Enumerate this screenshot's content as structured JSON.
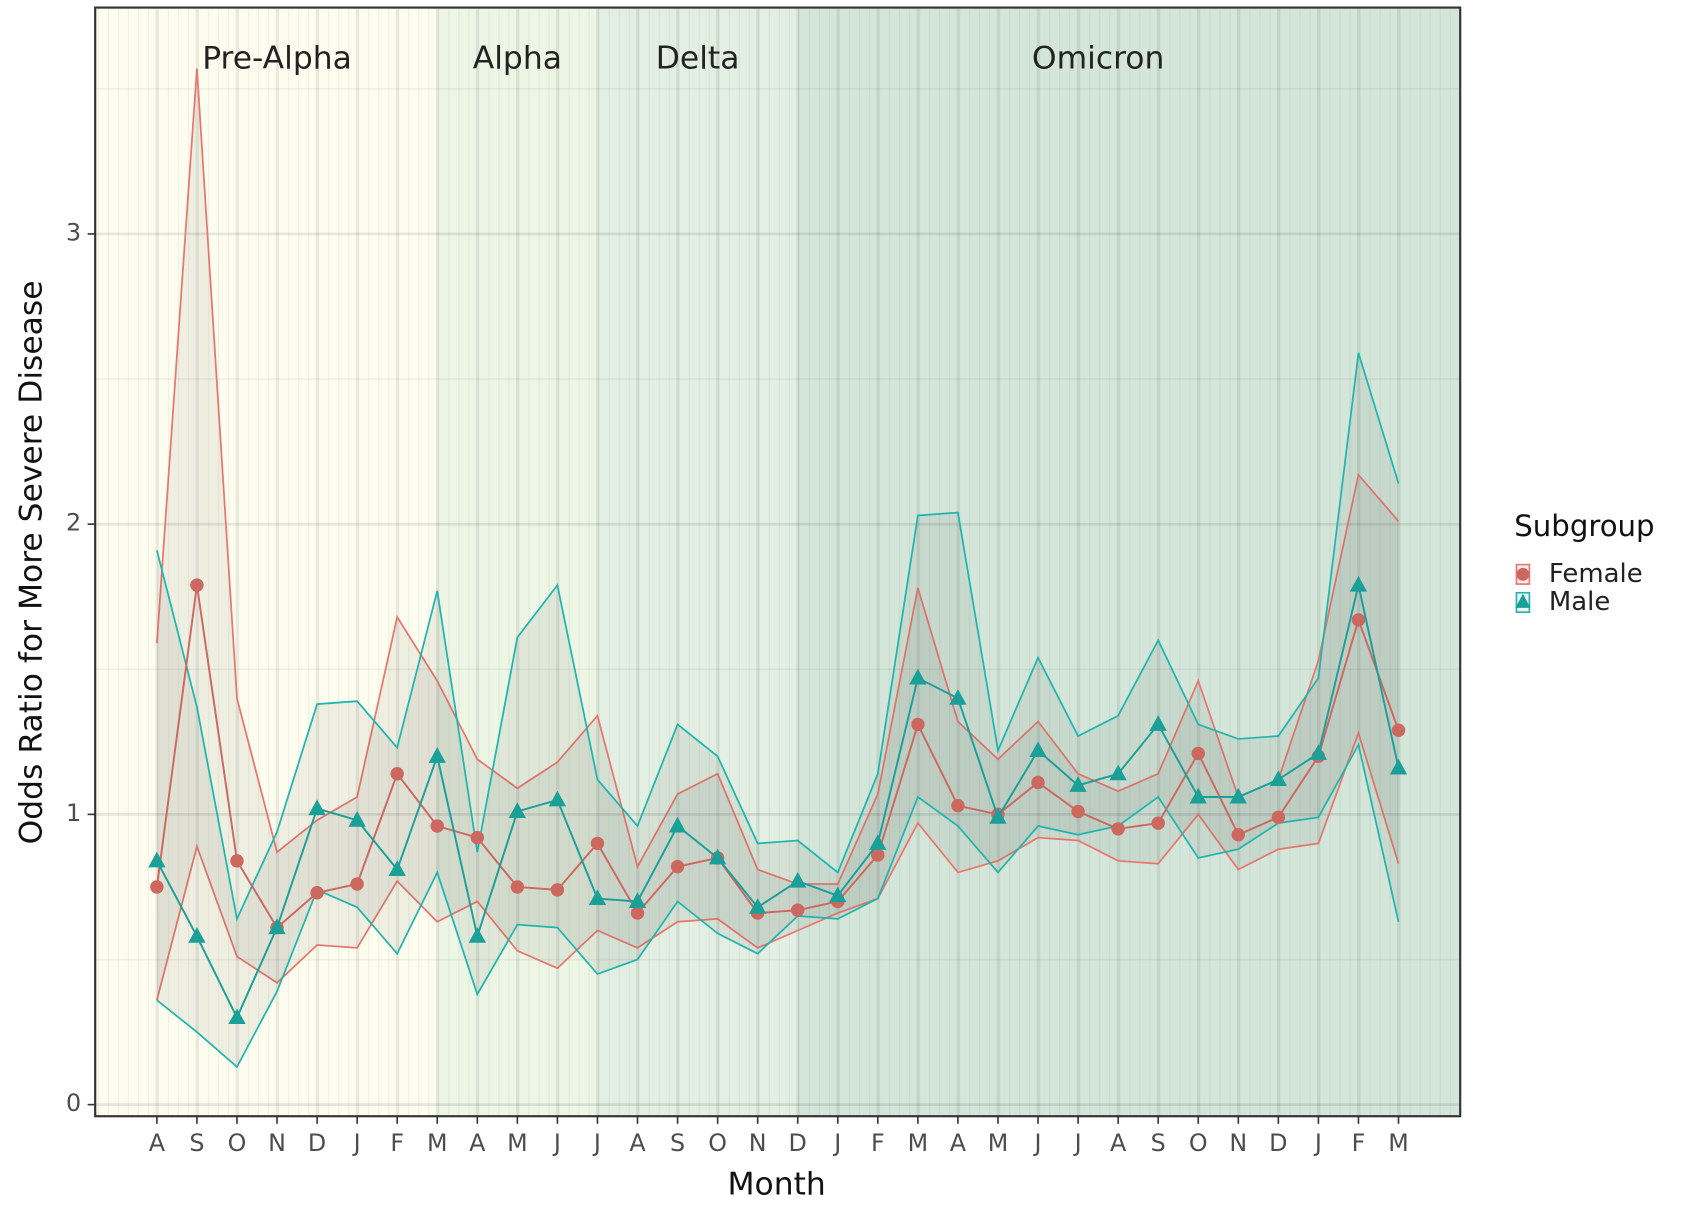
{
  "chart_data": {
    "type": "line",
    "x_label": "Month",
    "y_label": "Odds Ratio for More Severe Disease",
    "categories": [
      "A",
      "S",
      "O",
      "N",
      "D",
      "J",
      "F",
      "M",
      "A",
      "M",
      "J",
      "J",
      "A",
      "S",
      "O",
      "N",
      "D",
      "J",
      "F",
      "M",
      "A",
      "M",
      "J",
      "J",
      "A",
      "S",
      "O",
      "N",
      "D",
      "J",
      "F",
      "M"
    ],
    "ylim": [
      -0.04,
      3.78
    ],
    "yticks": [
      0,
      1,
      2,
      3
    ],
    "grid": true,
    "legend_title": "Subgroup",
    "legend_position": "right",
    "eras": [
      {
        "label": "Pre-Alpha",
        "color": "#fdfdef"
      },
      {
        "label": "Alpha",
        "color": "#edf6e5"
      },
      {
        "label": "Delta",
        "color": "#e2efe2"
      },
      {
        "label": "Omicron",
        "color": "#d4e6d9"
      }
    ],
    "series": [
      {
        "name": "Female",
        "color": "#e8766d",
        "marker": "circle",
        "values": [
          0.75,
          1.79,
          0.84,
          0.61,
          0.73,
          0.76,
          1.14,
          0.96,
          0.92,
          0.75,
          0.74,
          0.9,
          0.66,
          0.82,
          0.85,
          0.66,
          0.67,
          0.7,
          0.86,
          1.31,
          1.03,
          1.0,
          1.11,
          1.01,
          0.95,
          0.97,
          1.21,
          0.93,
          0.99,
          1.2,
          1.67,
          1.29
        ],
        "upper": [
          1.59,
          3.57,
          1.4,
          0.87,
          0.98,
          1.06,
          1.68,
          1.46,
          1.19,
          1.09,
          1.18,
          1.34,
          0.82,
          1.07,
          1.14,
          0.81,
          0.76,
          0.76,
          1.07,
          1.78,
          1.32,
          1.19,
          1.32,
          1.14,
          1.08,
          1.14,
          1.46,
          1.06,
          1.12,
          1.53,
          2.17,
          2.01
        ],
        "lower": [
          0.36,
          0.89,
          0.51,
          0.42,
          0.55,
          0.54,
          0.77,
          0.63,
          0.7,
          0.53,
          0.47,
          0.6,
          0.54,
          0.63,
          0.64,
          0.54,
          0.6,
          0.66,
          0.71,
          0.97,
          0.8,
          0.84,
          0.92,
          0.91,
          0.84,
          0.83,
          1.0,
          0.81,
          0.88,
          0.9,
          1.28,
          0.83
        ]
      },
      {
        "name": "Male",
        "color": "#1fb5ae",
        "marker": "triangle",
        "values": [
          0.84,
          0.58,
          0.3,
          0.61,
          1.02,
          0.98,
          0.81,
          1.2,
          0.58,
          1.01,
          1.05,
          0.71,
          0.7,
          0.96,
          0.85,
          0.68,
          0.77,
          0.72,
          0.9,
          1.47,
          1.4,
          0.99,
          1.22,
          1.1,
          1.14,
          1.31,
          1.06,
          1.06,
          1.12,
          1.21,
          1.79,
          1.16
        ],
        "upper": [
          1.91,
          1.37,
          0.64,
          0.94,
          1.38,
          1.39,
          1.23,
          1.77,
          0.87,
          1.61,
          1.79,
          1.12,
          0.96,
          1.31,
          1.2,
          0.9,
          0.91,
          0.8,
          1.14,
          2.03,
          2.04,
          1.22,
          1.54,
          1.27,
          1.34,
          1.6,
          1.31,
          1.26,
          1.27,
          1.47,
          2.59,
          2.14
        ],
        "lower": [
          0.36,
          0.25,
          0.13,
          0.39,
          0.74,
          0.68,
          0.52,
          0.8,
          0.38,
          0.62,
          0.61,
          0.45,
          0.5,
          0.7,
          0.59,
          0.52,
          0.65,
          0.64,
          0.71,
          1.06,
          0.96,
          0.8,
          0.96,
          0.93,
          0.96,
          1.06,
          0.85,
          0.88,
          0.97,
          0.99,
          1.24,
          0.63
        ]
      }
    ]
  }
}
